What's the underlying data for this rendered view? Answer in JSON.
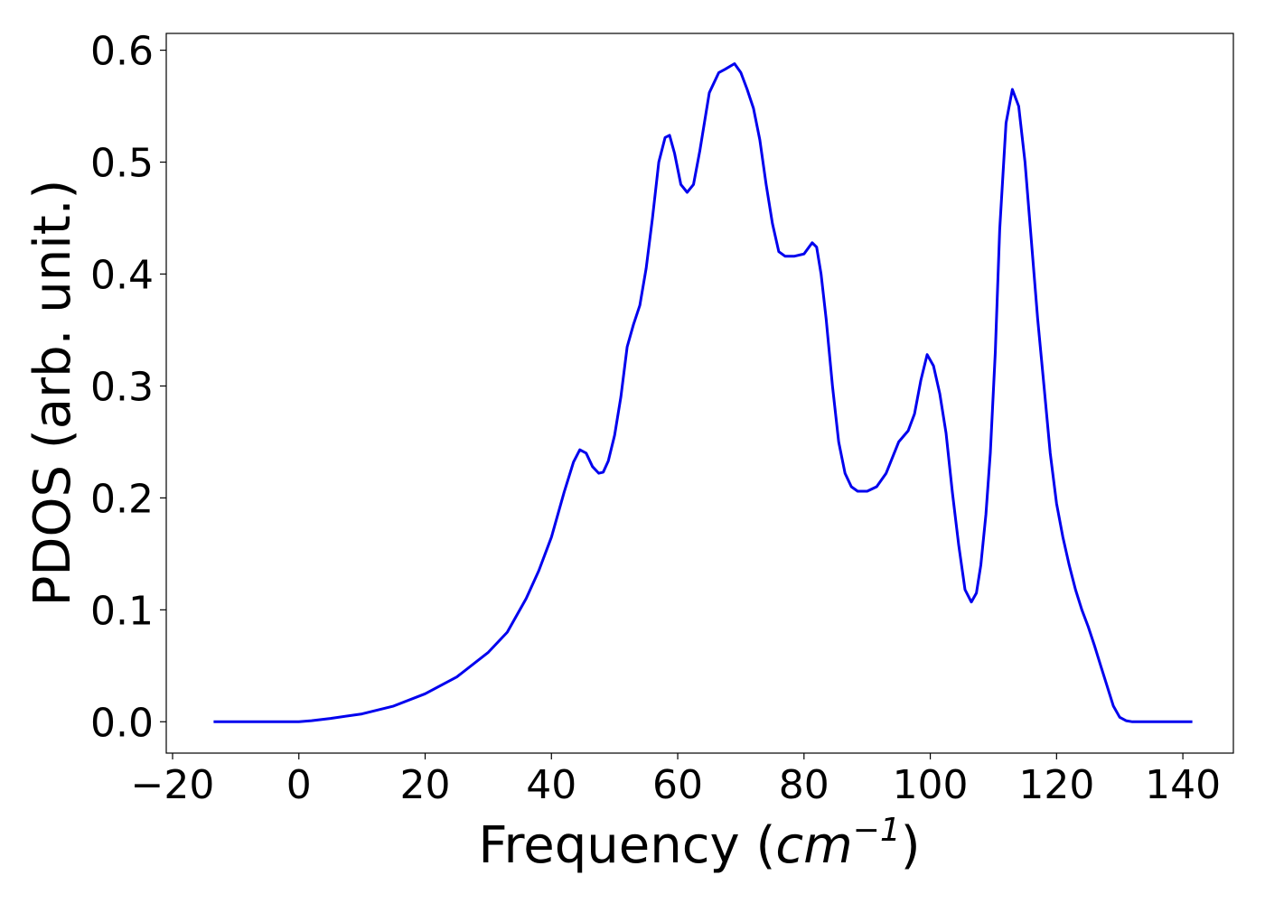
{
  "chart_data": {
    "type": "line",
    "xlabel_text": "Frequency (",
    "xlabel_unit": "cm",
    "xlabel_exp": "−1",
    "xlabel_close": ")",
    "ylabel": "PDOS (arb. unit.)",
    "xlim": [
      -21,
      148
    ],
    "ylim": [
      -0.028,
      0.615
    ],
    "x_ticks": [
      -20,
      0,
      20,
      40,
      60,
      80,
      100,
      120,
      140
    ],
    "x_tick_labels": [
      "−20",
      "0",
      "20",
      "40",
      "60",
      "80",
      "100",
      "120",
      "140"
    ],
    "y_ticks": [
      0.0,
      0.1,
      0.2,
      0.3,
      0.4,
      0.5,
      0.6
    ],
    "y_tick_labels": [
      "0.0",
      "0.1",
      "0.2",
      "0.3",
      "0.4",
      "0.5",
      "0.6"
    ],
    "grid": false,
    "line_color": "#0000ee",
    "x": [
      -13.5,
      -5,
      0,
      2,
      5,
      10,
      15,
      20,
      25,
      30,
      33,
      36,
      38,
      40,
      42,
      43.5,
      44.5,
      45.5,
      46.5,
      47.5,
      48.2,
      49,
      50,
      51,
      52,
      53,
      54,
      55,
      56,
      57,
      58,
      58.7,
      59.5,
      60.5,
      61.5,
      62.5,
      63.5,
      65,
      66.5,
      67.5,
      69,
      70,
      71,
      72,
      73,
      74,
      75,
      76,
      77,
      78.5,
      80,
      81.3,
      82,
      82.7,
      83.5,
      84.5,
      85.5,
      86.5,
      87.5,
      88.5,
      90,
      91.5,
      93,
      95,
      96.5,
      97.5,
      98.5,
      99.5,
      100.5,
      101.5,
      102.5,
      103.5,
      104.5,
      105.5,
      106.5,
      107.3,
      108,
      108.8,
      109.5,
      110.3,
      111,
      112,
      113,
      114,
      115,
      116,
      117,
      118,
      119,
      120,
      121,
      122,
      123,
      124,
      125,
      126,
      127,
      128,
      129,
      130,
      131,
      132,
      135,
      141.5
    ],
    "y": [
      0,
      0,
      0,
      0.001,
      0.003,
      0.007,
      0.014,
      0.025,
      0.04,
      0.062,
      0.08,
      0.11,
      0.135,
      0.165,
      0.205,
      0.232,
      0.243,
      0.24,
      0.228,
      0.222,
      0.223,
      0.233,
      0.256,
      0.29,
      0.335,
      0.355,
      0.372,
      0.405,
      0.45,
      0.5,
      0.522,
      0.524,
      0.508,
      0.48,
      0.473,
      0.48,
      0.51,
      0.562,
      0.58,
      0.583,
      0.588,
      0.58,
      0.565,
      0.548,
      0.52,
      0.48,
      0.445,
      0.42,
      0.416,
      0.416,
      0.418,
      0.428,
      0.424,
      0.4,
      0.36,
      0.3,
      0.25,
      0.222,
      0.21,
      0.206,
      0.206,
      0.21,
      0.222,
      0.25,
      0.26,
      0.275,
      0.305,
      0.328,
      0.318,
      0.293,
      0.258,
      0.205,
      0.158,
      0.118,
      0.107,
      0.115,
      0.14,
      0.185,
      0.24,
      0.33,
      0.44,
      0.535,
      0.565,
      0.55,
      0.5,
      0.43,
      0.36,
      0.3,
      0.24,
      0.195,
      0.165,
      0.14,
      0.118,
      0.1,
      0.085,
      0.068,
      0.05,
      0.032,
      0.014,
      0.004,
      0.001,
      0,
      0,
      0
    ]
  }
}
